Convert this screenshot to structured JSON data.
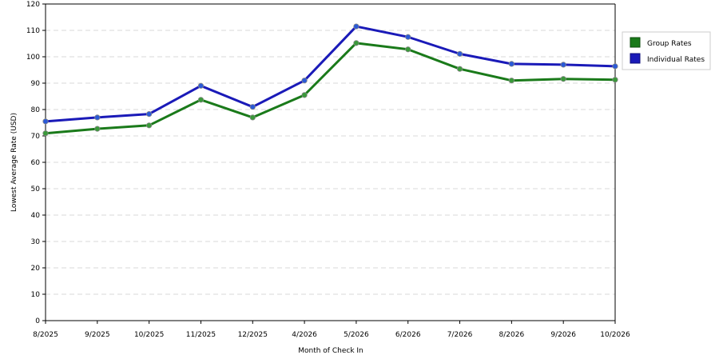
{
  "chart_data": {
    "type": "line",
    "xlabel": "Month of Check In",
    "ylabel": "Lowest Average Rate (USD)",
    "categories": [
      "8/2025",
      "9/2025",
      "10/2025",
      "11/2025",
      "12/2025",
      "4/2026",
      "5/2026",
      "6/2026",
      "7/2026",
      "8/2026",
      "9/2026",
      "10/2026"
    ],
    "ylim": [
      0,
      120
    ],
    "ytick_step": 10,
    "grid": true,
    "legend_position": "right",
    "series": [
      {
        "name": "Group Rates",
        "color": "#1a7a1a",
        "marker_color": "#3a9a3a",
        "values": [
          71,
          72.7,
          74,
          83.7,
          77,
          85.5,
          105.2,
          102.8,
          95.4,
          91,
          91.6,
          91.3
        ]
      },
      {
        "name": "Individual Rates",
        "color": "#1a1ab8",
        "marker_color": "#2a5ad8",
        "values": [
          75.5,
          77,
          78.3,
          89,
          81,
          91,
          111.5,
          107.5,
          101.1,
          97.3,
          97,
          96.4
        ]
      }
    ]
  }
}
